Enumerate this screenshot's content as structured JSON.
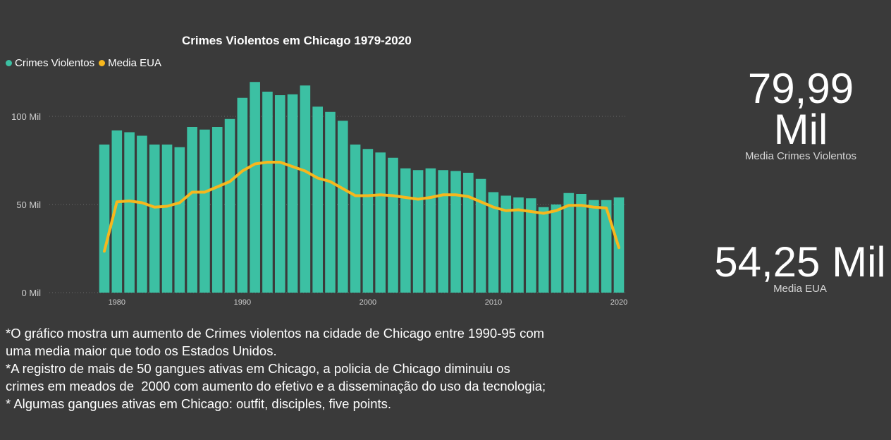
{
  "chart_data": {
    "type": "bar",
    "title": "Crimes Violentos em Chicago 1979-2020",
    "xlabel": "",
    "ylabel": "",
    "x": [
      1979,
      1980,
      1981,
      1982,
      1983,
      1984,
      1985,
      1986,
      1987,
      1988,
      1989,
      1990,
      1991,
      1992,
      1993,
      1994,
      1995,
      1996,
      1997,
      1998,
      1999,
      2000,
      2001,
      2002,
      2003,
      2004,
      2005,
      2006,
      2007,
      2008,
      2009,
      2010,
      2011,
      2012,
      2013,
      2014,
      2015,
      2016,
      2017,
      2018,
      2019,
      2020
    ],
    "x_ticks": [
      "1980",
      "1990",
      "2000",
      "2010",
      "2020"
    ],
    "y_ticks": [
      "0 Mil",
      "50 Mil",
      "100 Mil"
    ],
    "ylim": [
      0,
      120000
    ],
    "grid": "horizontal dotted",
    "legend_position": "top-left",
    "series": [
      {
        "name": "Crimes Violentos",
        "color": "#3cc0a3",
        "type": "bar",
        "values": [
          84000,
          92000,
          91000,
          89000,
          84000,
          84000,
          82500,
          94000,
          92500,
          94000,
          98500,
          110500,
          119500,
          114000,
          112000,
          112500,
          117500,
          105500,
          102500,
          97500,
          84000,
          81500,
          79500,
          76500,
          70500,
          69500,
          70500,
          69500,
          69000,
          68000,
          64500,
          57000,
          55000,
          54000,
          53500,
          48500,
          50000,
          56500,
          56000,
          52500,
          52500,
          54000
        ]
      },
      {
        "name": "Media EUA",
        "color": "#f7b71d",
        "type": "line",
        "values": [
          23500,
          51500,
          52000,
          51000,
          48500,
          49000,
          51000,
          57000,
          57000,
          60000,
          63000,
          69000,
          73000,
          74000,
          74000,
          71500,
          69000,
          65000,
          63000,
          59000,
          55000,
          55000,
          55500,
          55000,
          54000,
          53000,
          54000,
          55500,
          55500,
          54500,
          51500,
          48500,
          46500,
          47000,
          46000,
          45000,
          46500,
          49500,
          49500,
          48500,
          48000,
          25500
        ]
      }
    ]
  },
  "kpis": [
    {
      "value": "79,99 Mil",
      "label": "Media Crimes Violentos"
    },
    {
      "value": "54,25 Mil",
      "label": "Media EUA"
    }
  ],
  "kpi1_line1": "79,99",
  "kpi1_line2": "Mil",
  "notes": [
    "*O gráfico mostra um aumento de Crimes violentos na cidade de Chicago entre 1990-95 com",
    "uma media maior que todo os Estados Unidos.",
    "*A registro de mais de 50 gangues ativas em Chicago, a policia de Chicago diminuiu os",
    "crimes em meados de  2000 com aumento do efetivo e a disseminação do uso da tecnologia;",
    "* Algumas gangues ativas em Chicago: outfit, disciples, five points."
  ]
}
